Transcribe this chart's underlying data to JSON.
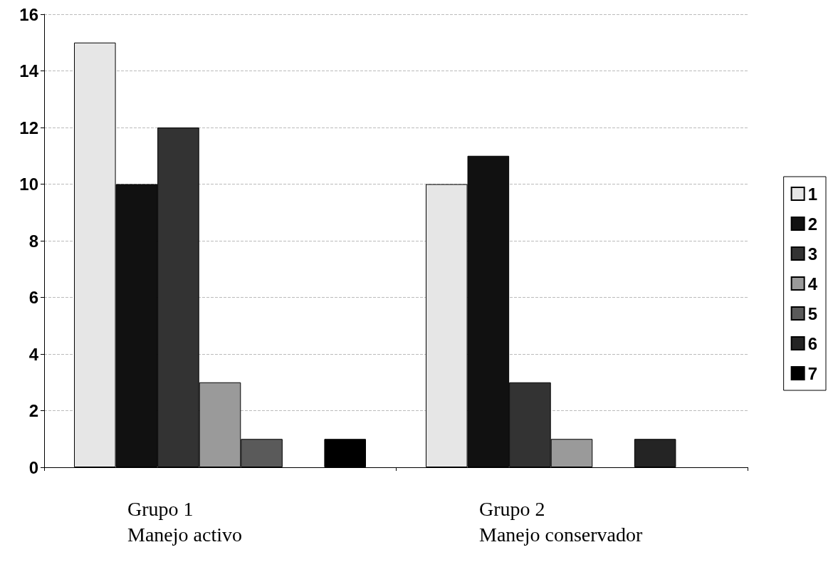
{
  "chart_data": {
    "type": "bar",
    "categories": [
      "Grupo 1\nManejo activo",
      "Grupo 2\nManejo conservador"
    ],
    "series": [
      {
        "name": "1",
        "color": "#e6e6e6",
        "values": [
          15,
          10
        ]
      },
      {
        "name": "2",
        "color": "#111111",
        "values": [
          10,
          11
        ]
      },
      {
        "name": "3",
        "color": "#333333",
        "values": [
          12,
          3
        ]
      },
      {
        "name": "4",
        "color": "#9a9a9a",
        "values": [
          3,
          1
        ]
      },
      {
        "name": "5",
        "color": "#5a5a5a",
        "values": [
          1,
          0
        ]
      },
      {
        "name": "6",
        "color": "#242424",
        "values": [
          0,
          1
        ]
      },
      {
        "name": "7",
        "color": "#000000",
        "values": [
          1,
          0
        ]
      }
    ],
    "ylim": [
      0,
      16
    ],
    "yticks": [
      0,
      2,
      4,
      6,
      8,
      10,
      12,
      14,
      16
    ],
    "grid": "y",
    "legend": "right"
  }
}
